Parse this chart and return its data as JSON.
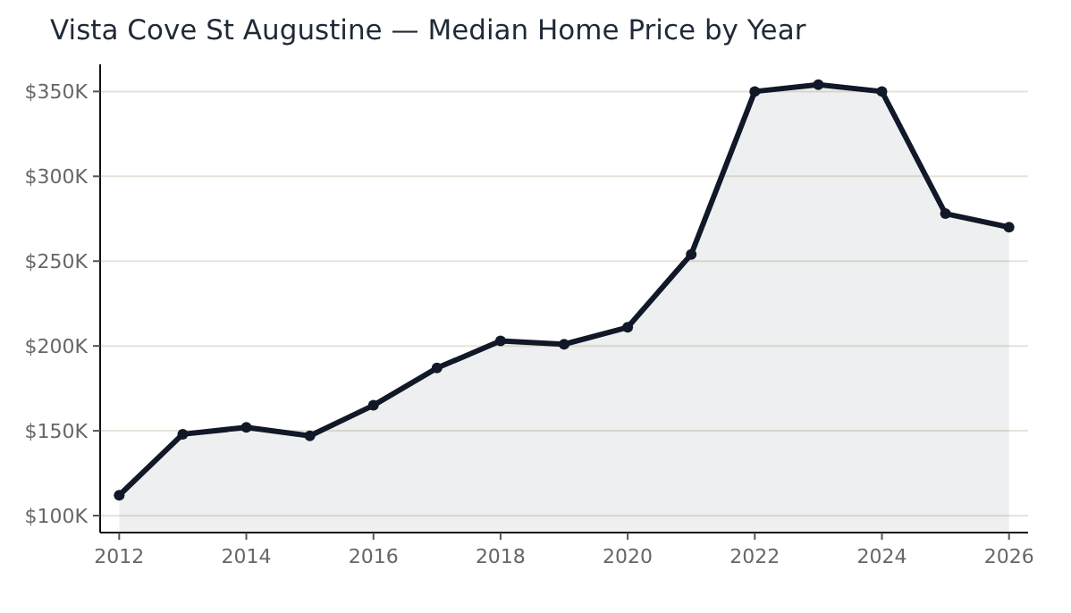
{
  "chart_data": {
    "type": "area",
    "title": "Vista Cove St Augustine — Median Home Price by Year",
    "x": [
      2012,
      2013,
      2014,
      2015,
      2016,
      2017,
      2018,
      2019,
      2020,
      2021,
      2022,
      2023,
      2024,
      2025,
      2026
    ],
    "series": [
      {
        "color": "#111827",
        "values": [
          112000,
          148000,
          152000,
          147000,
          165000,
          187000,
          203000,
          201000,
          211000,
          254000,
          350000,
          354000,
          350000,
          278000,
          270000
        ]
      }
    ],
    "xlim": [
      2011.7,
      2026.3
    ],
    "xticks": [
      2012,
      2014,
      2016,
      2018,
      2020,
      2022,
      2024,
      2026
    ],
    "ylim": [
      90000,
      366000
    ],
    "yticks": [
      {
        "value": 100000,
        "label": "$100K"
      },
      {
        "value": 150000,
        "label": "$150K"
      },
      {
        "value": 200000,
        "label": "$200K"
      },
      {
        "value": 250000,
        "label": "$250K"
      },
      {
        "value": 300000,
        "label": "$300K"
      },
      {
        "value": 350000,
        "label": "$350K"
      }
    ],
    "grid": "y",
    "marker": "circle",
    "line_style": "solid"
  }
}
